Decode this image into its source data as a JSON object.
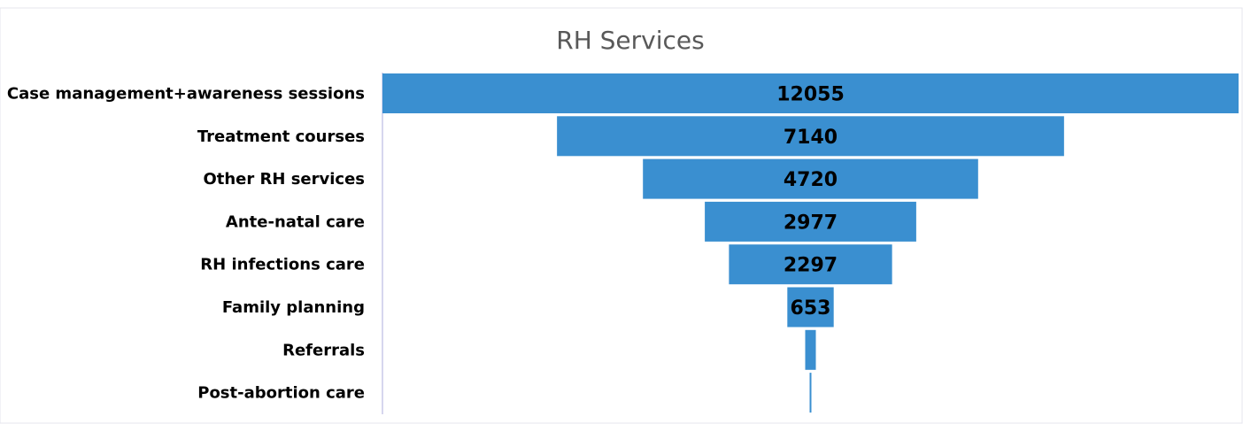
{
  "chart_data": {
    "type": "funnel",
    "title": "RH Services",
    "categories": [
      "Case management+awareness sessions",
      "Treatment courses",
      "Other RH services",
      "Ante-natal care",
      "RH infections care",
      "Family planning",
      "Referrals",
      "Post-abortion care"
    ],
    "values": [
      12055,
      7140,
      4720,
      2977,
      2297,
      653,
      150,
      25
    ],
    "color": "#3a8fd0"
  }
}
